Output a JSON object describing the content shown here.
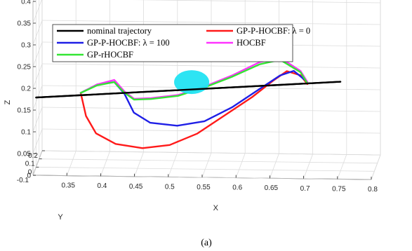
{
  "chart_data": {
    "type": "line",
    "dimension": "3d",
    "caption": "(a)",
    "xlabel": "X",
    "ylabel": "Y",
    "zlabel": "Z",
    "xlim": [
      0.3,
      0.8
    ],
    "ylim": [
      -0.1,
      0.2
    ],
    "zlim": [
      0,
      0.4
    ],
    "x_ticks": [
      "0.35",
      "0.4",
      "0.45",
      "0.5",
      "0.55",
      "0.6",
      "0.65",
      "0.7",
      "0.75",
      "0.8"
    ],
    "y_ticks": [
      "-0.1",
      "0",
      "0.1",
      "0.2"
    ],
    "z_ticks": [
      "0",
      "0.05",
      "0.1",
      "0.15",
      "0.2",
      "0.25",
      "0.3",
      "0.35",
      "0.4"
    ],
    "grid": true,
    "legend_position": "top-left",
    "obstacle": {
      "shape": "ellipsoid",
      "color": "#22e3f2",
      "center": [
        0.53,
        0.0,
        0.2
      ]
    },
    "series": [
      {
        "name": "nominal trajectory",
        "color": "#000000",
        "points": [
          [
            0.3,
            0.0,
            0.16
          ],
          [
            0.4,
            0.0,
            0.17
          ],
          [
            0.5,
            0.0,
            0.18
          ],
          [
            0.6,
            0.0,
            0.19
          ],
          [
            0.7,
            0.0,
            0.2
          ],
          [
            0.75,
            0.0,
            0.205
          ]
        ]
      },
      {
        "name": "GP-P-HOCBF: λ = 0",
        "color": "#ff1a1a",
        "points": [
          [
            0.366,
            0.0,
            0.172
          ],
          [
            0.374,
            -0.005,
            0.12
          ],
          [
            0.39,
            -0.03,
            0.085
          ],
          [
            0.42,
            -0.05,
            0.065
          ],
          [
            0.46,
            -0.06,
            0.058
          ],
          [
            0.5,
            -0.055,
            0.065
          ],
          [
            0.54,
            -0.045,
            0.09
          ],
          [
            0.58,
            -0.03,
            0.13
          ],
          [
            0.62,
            -0.015,
            0.17
          ],
          [
            0.65,
            0.0,
            0.205
          ],
          [
            0.67,
            0.015,
            0.225
          ],
          [
            0.69,
            0.02,
            0.215
          ],
          [
            0.7,
            0.02,
            0.195
          ]
        ]
      },
      {
        "name": "GP-P-HOCBF: λ = 100",
        "color": "#1f1fe6",
        "points": [
          [
            0.366,
            0.0,
            0.172
          ],
          [
            0.39,
            0.01,
            0.19
          ],
          [
            0.415,
            0.015,
            0.195
          ],
          [
            0.43,
            0.01,
            0.17
          ],
          [
            0.445,
            -0.01,
            0.13
          ],
          [
            0.47,
            -0.025,
            0.11
          ],
          [
            0.51,
            -0.03,
            0.105
          ],
          [
            0.55,
            -0.025,
            0.115
          ],
          [
            0.59,
            -0.01,
            0.145
          ],
          [
            0.63,
            0.005,
            0.185
          ],
          [
            0.66,
            0.015,
            0.215
          ],
          [
            0.68,
            0.02,
            0.225
          ],
          [
            0.7,
            0.02,
            0.2
          ]
        ]
      },
      {
        "name": "HOCBF",
        "color": "#ff33ff",
        "points": [
          [
            0.366,
            0.0,
            0.172
          ],
          [
            0.39,
            0.01,
            0.19
          ],
          [
            0.415,
            0.015,
            0.2
          ],
          [
            0.43,
            0.01,
            0.175
          ],
          [
            0.445,
            0.0,
            0.16
          ],
          [
            0.47,
            0.0,
            0.162
          ],
          [
            0.51,
            0.0,
            0.17
          ],
          [
            0.55,
            0.005,
            0.19
          ],
          [
            0.59,
            0.01,
            0.215
          ],
          [
            0.63,
            0.015,
            0.245
          ],
          [
            0.66,
            0.02,
            0.255
          ],
          [
            0.69,
            0.02,
            0.225
          ],
          [
            0.7,
            0.02,
            0.2
          ]
        ]
      },
      {
        "name": "GP-rHOCBF",
        "color": "#33e633",
        "points": [
          [
            0.366,
            0.0,
            0.172
          ],
          [
            0.39,
            0.01,
            0.188
          ],
          [
            0.415,
            0.015,
            0.195
          ],
          [
            0.43,
            0.01,
            0.172
          ],
          [
            0.445,
            0.0,
            0.158
          ],
          [
            0.47,
            0.0,
            0.16
          ],
          [
            0.51,
            0.0,
            0.168
          ],
          [
            0.55,
            0.005,
            0.188
          ],
          [
            0.59,
            0.01,
            0.212
          ],
          [
            0.63,
            0.015,
            0.24
          ],
          [
            0.66,
            0.02,
            0.25
          ],
          [
            0.69,
            0.02,
            0.222
          ],
          [
            0.7,
            0.02,
            0.197
          ]
        ]
      }
    ]
  }
}
